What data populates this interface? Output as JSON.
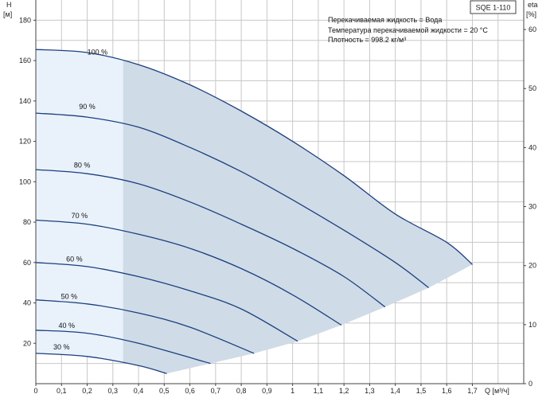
{
  "chart_data": {
    "type": "line",
    "title": "SQE 1-110",
    "info_lines": [
      "Перекачиваемая жидкость = Вода",
      "Температура перекачиваемой жидкости = 20 °C",
      "Плотность = 998.2 кг/м³"
    ],
    "y_label": "H",
    "y_unit": "[м]",
    "y2_label": "eta",
    "y2_unit": "[%]",
    "x_label": "Q [м³/ч]",
    "xlim": [
      0,
      1.9
    ],
    "ylim": [
      0,
      190
    ],
    "y2lim": [
      0,
      65
    ],
    "x_ticks": [
      "0",
      "0,1",
      "0,2",
      "0,3",
      "0,4",
      "0,5",
      "0,6",
      "0,7",
      "0,8",
      "0,9",
      "1",
      "1,1",
      "1,2",
      "1,3",
      "1,4",
      "1,5",
      "1,6",
      "1,7"
    ],
    "y_ticks": [
      "20",
      "40",
      "60",
      "80",
      "100",
      "120",
      "140",
      "160",
      "180"
    ],
    "y2_ticks": [
      "0",
      "10",
      "20",
      "30",
      "40",
      "50",
      "60"
    ],
    "grid": true,
    "shaded_region_boundary": [
      [
        0.51,
        5
      ],
      [
        0.68,
        10
      ],
      [
        0.85,
        15
      ],
      [
        1.02,
        21
      ],
      [
        1.19,
        29
      ],
      [
        1.36,
        38
      ],
      [
        1.53,
        47.5
      ],
      [
        1.7,
        59
      ]
    ],
    "light_region_xmax": 0.34,
    "series": [
      {
        "name": "100 %",
        "label_at": [
          0.24,
          163
        ],
        "points": [
          [
            0,
            165.5
          ],
          [
            0.2,
            164
          ],
          [
            0.4,
            158
          ],
          [
            0.6,
            148
          ],
          [
            0.8,
            135
          ],
          [
            1.0,
            120
          ],
          [
            1.2,
            103
          ],
          [
            1.4,
            84
          ],
          [
            1.6,
            70
          ],
          [
            1.7,
            59
          ]
        ]
      },
      {
        "name": "90 %",
        "label_at": [
          0.2,
          136
        ],
        "points": [
          [
            0,
            134
          ],
          [
            0.2,
            132
          ],
          [
            0.4,
            127
          ],
          [
            0.6,
            117
          ],
          [
            0.8,
            105
          ],
          [
            1.0,
            91
          ],
          [
            1.2,
            76
          ],
          [
            1.4,
            60
          ],
          [
            1.53,
            47.5
          ]
        ]
      },
      {
        "name": "80 %",
        "label_at": [
          0.18,
          107
        ],
        "points": [
          [
            0,
            106
          ],
          [
            0.2,
            104
          ],
          [
            0.4,
            99
          ],
          [
            0.6,
            90
          ],
          [
            0.8,
            79
          ],
          [
            1.0,
            67
          ],
          [
            1.2,
            53
          ],
          [
            1.36,
            38
          ]
        ]
      },
      {
        "name": "70 %",
        "label_at": [
          0.17,
          82
        ],
        "points": [
          [
            0,
            81
          ],
          [
            0.2,
            79
          ],
          [
            0.4,
            74
          ],
          [
            0.6,
            67
          ],
          [
            0.8,
            57
          ],
          [
            1.0,
            44
          ],
          [
            1.19,
            29
          ]
        ]
      },
      {
        "name": "60 %",
        "label_at": [
          0.15,
          60.5
        ],
        "points": [
          [
            0,
            60
          ],
          [
            0.2,
            58
          ],
          [
            0.4,
            53
          ],
          [
            0.6,
            46
          ],
          [
            0.8,
            37
          ],
          [
            1.02,
            21
          ]
        ]
      },
      {
        "name": "50 %",
        "label_at": [
          0.13,
          42
        ],
        "points": [
          [
            0,
            41.5
          ],
          [
            0.2,
            39.5
          ],
          [
            0.4,
            35
          ],
          [
            0.6,
            28
          ],
          [
            0.85,
            15
          ]
        ]
      },
      {
        "name": "40 %",
        "label_at": [
          0.12,
          27.5
        ],
        "points": [
          [
            0,
            26.5
          ],
          [
            0.2,
            25
          ],
          [
            0.4,
            20
          ],
          [
            0.68,
            10
          ]
        ]
      },
      {
        "name": "30 %",
        "label_at": [
          0.1,
          17
        ],
        "points": [
          [
            0,
            15
          ],
          [
            0.2,
            13.5
          ],
          [
            0.4,
            9
          ],
          [
            0.51,
            5
          ]
        ]
      }
    ]
  }
}
